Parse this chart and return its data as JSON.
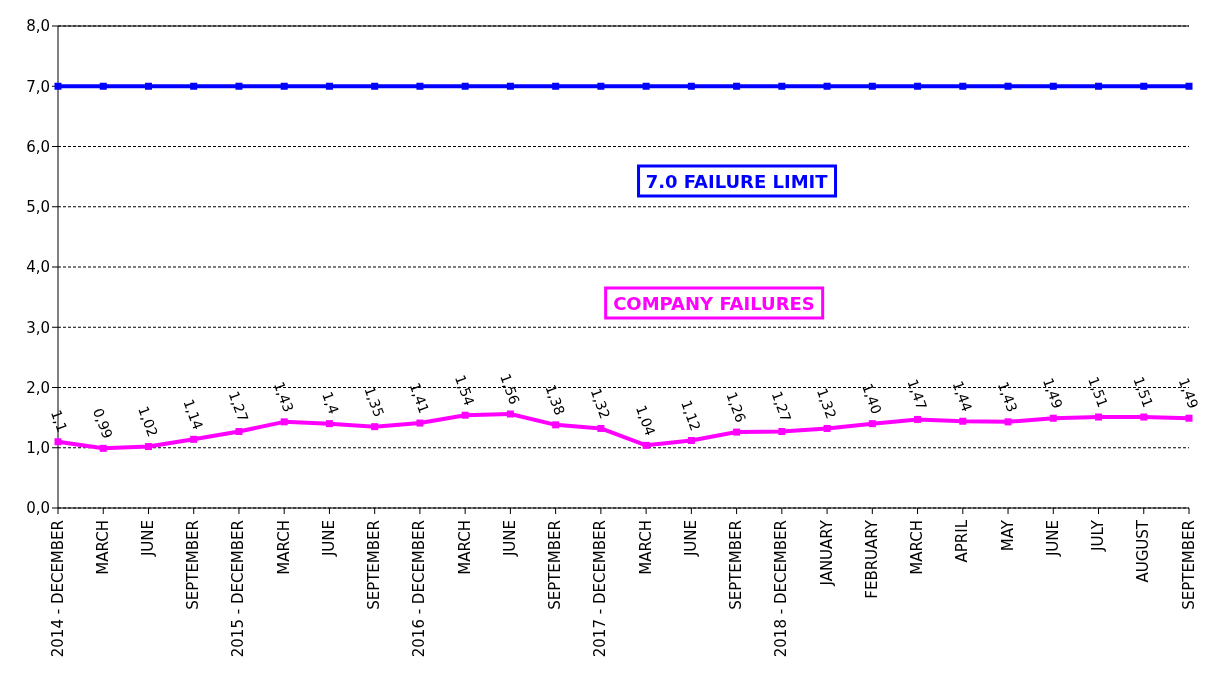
{
  "chart_data": {
    "type": "line",
    "categories": [
      "2014 - DECEMBER",
      "MARCH",
      "JUNE",
      "SEPTEMBER",
      "2015 - DECEMBER",
      "MARCH",
      "JUNE",
      "SEPTEMBER",
      "2016 - DECEMBER",
      "MARCH",
      "JUNE",
      "SEPTEMBER",
      "2017 - DECEMBER",
      "MARCH",
      "JUNE",
      "SEPTEMBER",
      "2018 - DECEMBER",
      "JANUARY",
      "FEBRUARY",
      "MARCH",
      "APRIL",
      "MAY",
      "JUNE",
      "JULY",
      "AUGUST",
      "SEPTEMBER"
    ],
    "series": [
      {
        "name": "7.0 FAILURE LIMIT",
        "color": "#0000ff",
        "values": [
          7,
          7,
          7,
          7,
          7,
          7,
          7,
          7,
          7,
          7,
          7,
          7,
          7,
          7,
          7,
          7,
          7,
          7,
          7,
          7,
          7,
          7,
          7,
          7,
          7,
          7
        ]
      },
      {
        "name": "COMPANY FAILURES",
        "color": "#ff00ff",
        "values": [
          1.1,
          0.99,
          1.02,
          1.14,
          1.27,
          1.43,
          1.4,
          1.35,
          1.41,
          1.54,
          1.56,
          1.38,
          1.32,
          1.04,
          1.12,
          1.26,
          1.27,
          1.32,
          1.4,
          1.47,
          1.44,
          1.43,
          1.49,
          1.51,
          1.51,
          1.49
        ],
        "value_labels": [
          "1,1",
          "0,99",
          "1,02",
          "1,14",
          "1,27",
          "1,43",
          "1,4",
          "1,35",
          "1,41",
          "1,54",
          "1,56",
          "1,38",
          "1,32",
          "1,04",
          "1,12",
          "1,26",
          "1,27",
          "1,32",
          "1,40",
          "1,47",
          "1,44",
          "1,43",
          "1,49",
          "1,51",
          "1,51",
          "1,49"
        ]
      }
    ],
    "ylim": [
      0,
      8
    ],
    "yticks": [
      {
        "value": 0,
        "label": "0,0"
      },
      {
        "value": 1,
        "label": "1,0"
      },
      {
        "value": 2,
        "label": "2,0"
      },
      {
        "value": 3,
        "label": "3,0"
      },
      {
        "value": 4,
        "label": "4,0"
      },
      {
        "value": 5,
        "label": "5,0"
      },
      {
        "value": 6,
        "label": "6,0"
      },
      {
        "value": 7,
        "label": "7,0"
      },
      {
        "value": 8,
        "label": "8,0"
      }
    ],
    "grid": "y",
    "marker": "square",
    "line_style": "solid"
  }
}
